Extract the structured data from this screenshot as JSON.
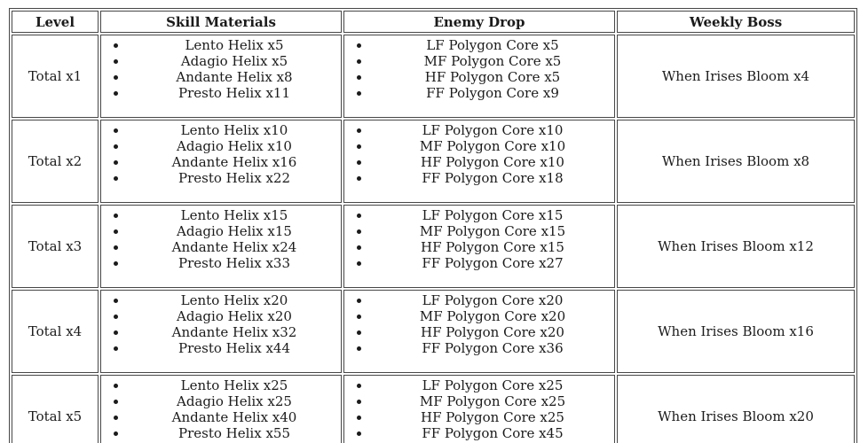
{
  "table": {
    "headers": [
      "Level",
      "Skill Materials",
      "Enemy Drop",
      "Weekly Boss"
    ],
    "rows": [
      {
        "level": "Total x1",
        "skill_materials": [
          "Lento Helix x5",
          "Adagio Helix x5",
          "Andante Helix x8",
          "Presto Helix x11"
        ],
        "enemy_drop": [
          "LF Polygon Core x5",
          "MF Polygon Core x5",
          "HF Polygon Core x5",
          "FF Polygon Core x9"
        ],
        "weekly_boss": "When Irises Bloom x4"
      },
      {
        "level": "Total x2",
        "skill_materials": [
          "Lento Helix x10",
          "Adagio Helix x10",
          "Andante Helix x16",
          "Presto Helix x22"
        ],
        "enemy_drop": [
          "LF Polygon Core x10",
          "MF Polygon Core x10",
          "HF Polygon Core x10",
          "FF Polygon Core x18"
        ],
        "weekly_boss": "When Irises Bloom x8"
      },
      {
        "level": "Total x3",
        "skill_materials": [
          "Lento Helix x15",
          "Adagio Helix x15",
          "Andante Helix x24",
          "Presto Helix x33"
        ],
        "enemy_drop": [
          "LF Polygon Core x15",
          "MF Polygon Core x15",
          "HF Polygon Core x15",
          "FF Polygon Core x27"
        ],
        "weekly_boss": "When Irises Bloom x12"
      },
      {
        "level": "Total x4",
        "skill_materials": [
          "Lento Helix x20",
          "Adagio Helix x20",
          "Andante Helix x32",
          "Presto Helix x44"
        ],
        "enemy_drop": [
          "LF Polygon Core x20",
          "MF Polygon Core x20",
          "HF Polygon Core x20",
          "FF Polygon Core x36"
        ],
        "weekly_boss": "When Irises Bloom x16"
      },
      {
        "level": "Total x5",
        "skill_materials": [
          "Lento Helix x25",
          "Adagio Helix x25",
          "Andante Helix x40",
          "Presto Helix x55"
        ],
        "enemy_drop": [
          "LF Polygon Core x25",
          "MF Polygon Core x25",
          "HF Polygon Core x25",
          "FF Polygon Core x45"
        ],
        "weekly_boss": "When Irises Bloom x20"
      }
    ]
  }
}
